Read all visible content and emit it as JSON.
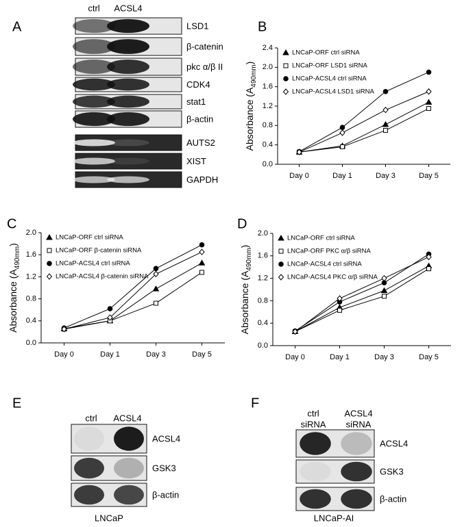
{
  "panel_labels": [
    "A",
    "B",
    "C",
    "D",
    "E",
    "F"
  ],
  "panel_a": {
    "columns": [
      "ctrl",
      "ACSL4"
    ],
    "rows": [
      "LSD1",
      "β-catenin",
      "pkc α/β II",
      "CDK4",
      "stat1",
      "β-actin",
      "AUTS2",
      "XIST",
      "GAPDH"
    ]
  },
  "panel_e": {
    "columns": [
      "ctrl",
      "ACSL4"
    ],
    "rows": [
      "ACSL4",
      "GSK3",
      "β-actin"
    ],
    "caption": "LNCaP"
  },
  "panel_f": {
    "columns": [
      [
        "ctrl",
        "siRNA"
      ],
      [
        "ACSL4",
        "siRNA"
      ]
    ],
    "rows": [
      "ACSL4",
      "GSK3",
      "β-actin"
    ],
    "caption": "LNCaP-AI"
  },
  "chart_data": [
    {
      "type": "line",
      "ylabel": {
        "text": "Absorbance (A",
        "subscript": "490mm",
        "end": ")"
      },
      "categories": [
        "Day 0",
        "Day 1",
        "Day 3",
        "Day 5"
      ],
      "ylim": [
        0,
        2.4
      ],
      "yticks": [
        {
          "value": 0,
          "label": "0.0"
        },
        0.4,
        0.8,
        1.2,
        1.6,
        {
          "value": 2,
          "label": "2.0"
        },
        2.4
      ],
      "series": [
        {
          "name": "LNCaP-ORF ctrl siRNA",
          "marker": "triangle",
          "color": "#000000",
          "filled": true,
          "values": [
            0.25,
            0.38,
            0.82,
            1.28
          ]
        },
        {
          "name": "LNCaP-ORF LSD1 siRNA",
          "marker": "square",
          "color": "#000000",
          "filled": false,
          "values": [
            0.25,
            0.36,
            0.7,
            1.15
          ]
        },
        {
          "name": "LNCaP-ACSL4 ctrl siRNA",
          "marker": "circle",
          "color": "#000000",
          "filled": true,
          "values": [
            0.26,
            0.76,
            1.5,
            1.9
          ]
        },
        {
          "name": "LNCaP-ACSL4 LSD1 siRNA",
          "marker": "diamond",
          "color": "#000000",
          "filled": false,
          "values": [
            0.25,
            0.65,
            1.12,
            1.5
          ]
        }
      ]
    },
    {
      "type": "line",
      "ylabel": {
        "text": "Absorbance (A",
        "subscript": "490mm",
        "end": ")"
      },
      "categories": [
        "Day 0",
        "Day 1",
        "Day 3",
        "Day 5"
      ],
      "ylim": [
        0,
        2
      ],
      "yticks": [
        {
          "value": 0,
          "label": "0.0"
        },
        0.4,
        0.8,
        1.2,
        1.6,
        {
          "value": 2,
          "label": "2.0"
        }
      ],
      "series": [
        {
          "name": "LNCaP-ORF ctrl siRNA",
          "marker": "triangle",
          "color": "#000000",
          "filled": true,
          "values": [
            0.26,
            0.4,
            0.98,
            1.45
          ]
        },
        {
          "name": "LNCaP-ORF β-catenin siRNA",
          "marker": "square",
          "color": "#000000",
          "filled": false,
          "values": [
            0.25,
            0.4,
            0.72,
            1.28
          ]
        },
        {
          "name": "LNCaP-ACSL4 ctrl siRNA",
          "marker": "circle",
          "color": "#000000",
          "filled": true,
          "values": [
            0.27,
            0.62,
            1.35,
            1.78
          ]
        },
        {
          "name": "LNCaP-ACSL4 β-catenin siRNA",
          "marker": "diamond",
          "color": "#000000",
          "filled": false,
          "values": [
            0.25,
            0.46,
            1.25,
            1.65
          ]
        }
      ]
    },
    {
      "type": "line",
      "ylabel": {
        "text": "Absorbance (A",
        "subscript": "490mm",
        "end": ")"
      },
      "categories": [
        "Day 0",
        "Day 1",
        "Day 3",
        "Day 5"
      ],
      "ylim": [
        0,
        2
      ],
      "yticks": [
        {
          "value": 0,
          "label": "0.0"
        },
        0.4,
        0.8,
        1.2,
        1.6,
        {
          "value": 2,
          "label": "2.0"
        }
      ],
      "series": [
        {
          "name": "LNCaP-ORF ctrl siRNA",
          "marker": "triangle",
          "color": "#000000",
          "filled": true,
          "values": [
            0.25,
            0.68,
            0.98,
            1.42
          ]
        },
        {
          "name": "LNCaP-ORF PKC α/β siRNA",
          "marker": "square",
          "color": "#000000",
          "filled": false,
          "values": [
            0.25,
            0.63,
            0.88,
            1.37
          ]
        },
        {
          "name": "LNCaP-ACSL4 ctrl siRNA",
          "marker": "circle",
          "color": "#000000",
          "filled": true,
          "values": [
            0.26,
            0.78,
            1.12,
            1.63
          ]
        },
        {
          "name": "LNCaP-ACSL4 PKC α/β siRNA",
          "marker": "diamond",
          "color": "#000000",
          "filled": false,
          "values": [
            0.25,
            0.84,
            1.2,
            1.58
          ]
        }
      ]
    }
  ]
}
